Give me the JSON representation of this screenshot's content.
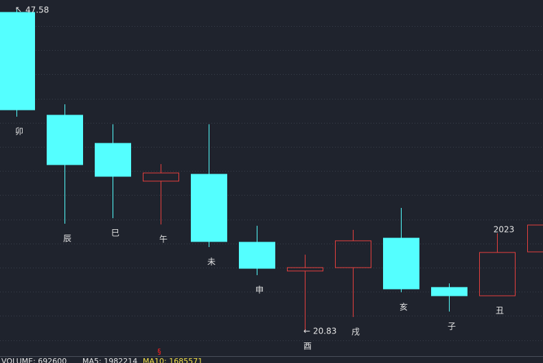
{
  "chart_data": {
    "type": "candlestick",
    "categories": [
      "卯",
      "辰",
      "巳",
      "午",
      "未",
      "申",
      "酉",
      "戌",
      "亥",
      "子",
      "丑",
      null
    ],
    "open": [
      47.35,
      38.8,
      36.46,
      33.32,
      33.89,
      28.24,
      25.85,
      26.13,
      28.58,
      24.48,
      23.79,
      27.44
    ],
    "high": [
      47.58,
      39.71,
      38.05,
      34.74,
      38.05,
      29.61,
      27.21,
      29.27,
      31.09,
      24.82,
      28.98,
      29.67
    ],
    "low": [
      38.68,
      29.78,
      30.24,
      29.72,
      27.84,
      25.5,
      20.83,
      22.02,
      24.08,
      22.48,
      23.79,
      27.44
    ],
    "close": [
      39.25,
      34.69,
      33.72,
      34.0,
      28.3,
      26.07,
      26.13,
      28.36,
      24.36,
      23.79,
      27.39,
      29.67
    ],
    "up_color": "#e8403e",
    "down_color": "#54ffff",
    "ylim": [
      18.77,
      48.38
    ],
    "max_index": 0,
    "min_index": 6,
    "annotations": [
      {
        "text": "2023",
        "index": 10
      }
    ],
    "indicator": {
      "volume": "VOLUME: 692600",
      "ma5": "MA5: 1982214",
      "ma10": "MA10: 1685571",
      "marker": "§"
    }
  }
}
